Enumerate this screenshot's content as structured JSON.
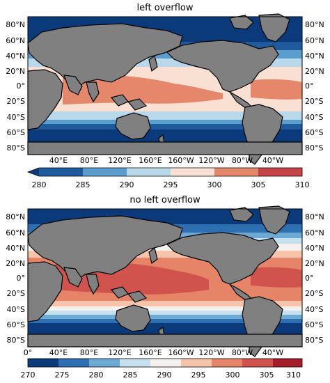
{
  "maps": [
    {
      "title": "left overflow",
      "lat_labels": [
        "80°N",
        "60°N",
        "40°N",
        "20°N",
        "0°",
        "20°S",
        "40°S",
        "60°S",
        "80°S"
      ],
      "lon_labels": [
        "40°E",
        "80°E",
        "120°E",
        "160°E",
        "160°W",
        "120°W",
        "80°W",
        "40°W"
      ],
      "colorbar_ticks": [
        "280",
        "285",
        "290",
        "295",
        "300",
        "305",
        "310"
      ],
      "colorbar_colors": [
        "#1f5b9c",
        "#5b9dcc",
        "#b9d9ea",
        "#f9e0d2",
        "#e5876b",
        "#c4444a"
      ],
      "colorbar_extend": "min",
      "under_color": "#0b3a7a"
    },
    {
      "title": "no left overflow",
      "lat_labels": [
        "80°N",
        "60°N",
        "40°N",
        "20°N",
        "0°",
        "20°S",
        "40°S",
        "60°S",
        "80°S"
      ],
      "lon_labels": [
        "0°",
        "40°E",
        "80°E",
        "120°E",
        "160°E",
        "160°W",
        "120°W",
        "80°W",
        "40°W"
      ],
      "colorbar_ticks": [
        "270",
        "275",
        "280",
        "285",
        "290",
        "295",
        "300",
        "305",
        "310"
      ],
      "colorbar_colors": [
        "#0b3a7a",
        "#2d6fb0",
        "#6ea9d4",
        "#c6e0ee",
        "#f5f1ee",
        "#f5c4ab",
        "#e58467",
        "#d0534d",
        "#a51c2a"
      ],
      "colorbar_extend": "neither"
    }
  ],
  "colors": {
    "land": "#808080",
    "cold_deep": "#0b3a7a",
    "cold": "#1f5b9c",
    "cool": "#5b9dcc",
    "light": "#b9d9ea",
    "warm_light": "#f9e0d2",
    "warm": "#e5876b",
    "hot": "#d0534d"
  }
}
